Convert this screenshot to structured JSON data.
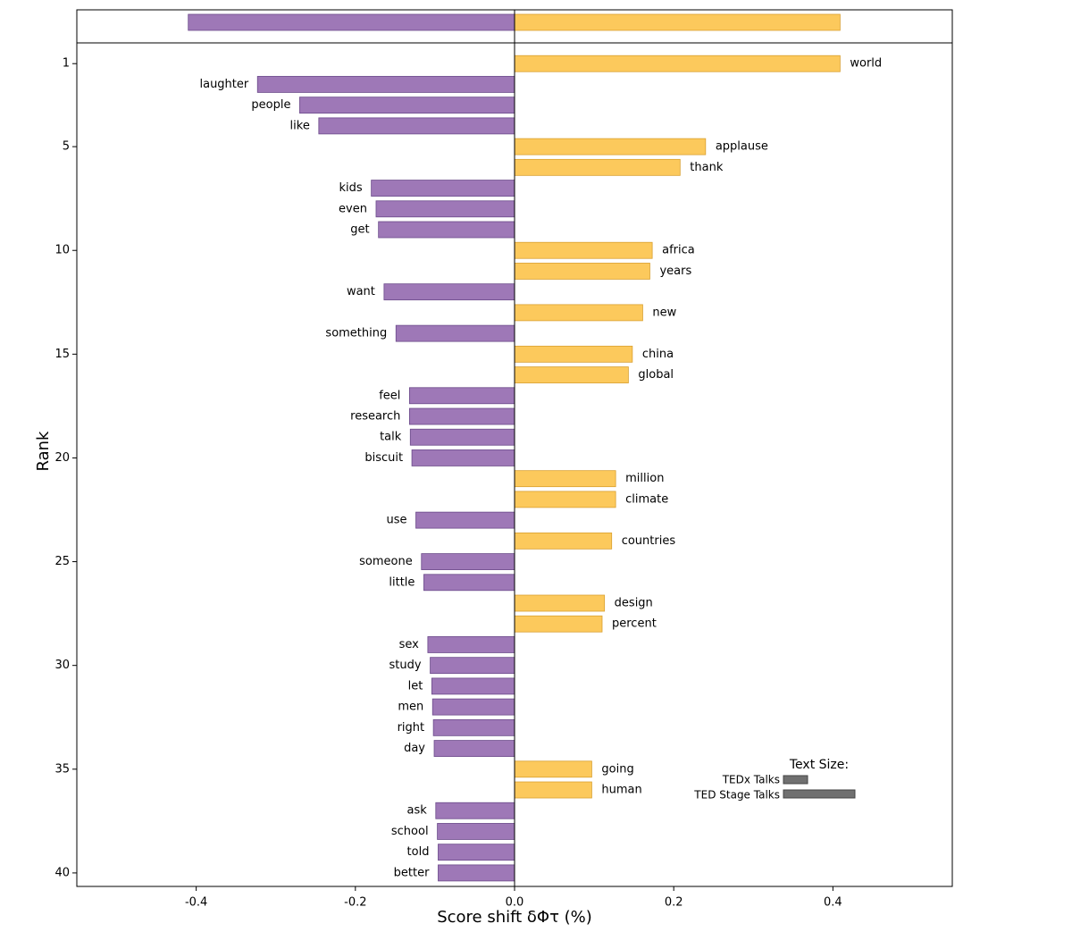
{
  "chart_data": {
    "type": "wordshift",
    "xlabel": "Score shift δΦτ (%)",
    "ylabel": "Rank",
    "total_values": [
      -0.41,
      0.409
    ],
    "categories": [
      "world",
      "laughter",
      "people",
      "like",
      "applause",
      "thank",
      "kids",
      "even",
      "get",
      "africa",
      "years",
      "want",
      "new",
      "something",
      "china",
      "global",
      "feel",
      "research",
      "talk",
      "biscuit",
      "million",
      "climate",
      "use",
      "countries",
      "someone",
      "little",
      "design",
      "percent",
      "sex",
      "study",
      "let",
      "men",
      "right",
      "day",
      "going",
      "human",
      "ask",
      "school",
      "told",
      "better"
    ],
    "values": [
      0.409,
      -0.323,
      -0.27,
      -0.246,
      0.24,
      0.208,
      -0.18,
      -0.174,
      -0.171,
      0.173,
      0.17,
      -0.164,
      0.161,
      -0.149,
      0.148,
      0.143,
      -0.132,
      -0.132,
      -0.131,
      -0.129,
      0.127,
      0.127,
      -0.124,
      0.122,
      -0.117,
      -0.114,
      0.113,
      0.11,
      -0.109,
      -0.106,
      -0.104,
      -0.103,
      -0.102,
      -0.101,
      0.097,
      0.097,
      -0.099,
      -0.097,
      -0.096,
      -0.096
    ],
    "positive_color": "#fcc95c",
    "negative_color": "#9e78b7",
    "xlim": [
      -0.55,
      0.55
    ],
    "xticks": [
      -0.4,
      -0.2,
      {
        "value": 0,
        "label": "0.0"
      },
      0.2,
      0.4
    ],
    "ylim": [
      40.65,
      0
    ],
    "yticks": [
      1,
      5,
      10,
      15,
      20,
      25,
      30,
      35,
      40
    ],
    "legend_title": "Text Size:",
    "legend": [
      "TEDx Talks",
      "TED Stage Talks"
    ]
  }
}
